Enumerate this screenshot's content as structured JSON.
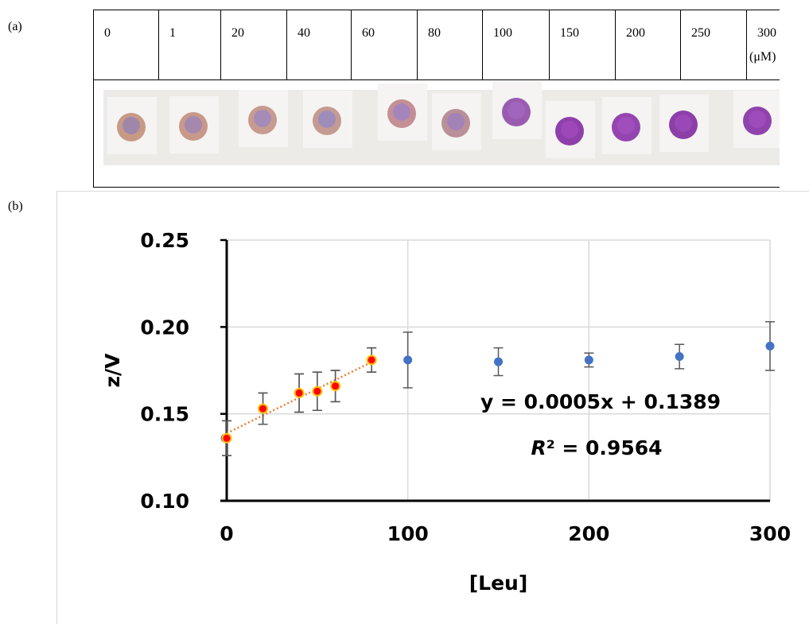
{
  "panel_a": {
    "label": "(a)",
    "concentrations": [
      "0",
      "1",
      "20",
      "40",
      "60",
      "80",
      "100",
      "150",
      "200",
      "250",
      "300"
    ],
    "unit": "(μM)"
  },
  "panel_b": {
    "label": "(b)"
  },
  "chart_data": {
    "type": "scatter",
    "x_label": "[Leu]",
    "y_label": "z/V",
    "x": [
      0,
      20,
      40,
      50,
      60,
      80,
      100,
      150,
      200,
      250,
      300
    ],
    "series": [
      {
        "color": "#4472c4",
        "values": [
          0.136,
          0.153,
          0.162,
          0.163,
          0.166,
          0.181,
          0.181,
          0.18,
          0.181,
          0.183,
          0.189
        ],
        "errors": [
          0.01,
          0.009,
          0.011,
          0.011,
          0.009,
          0.007,
          0.016,
          0.008,
          0.004,
          0.007,
          0.014
        ]
      },
      {
        "color": "#ff0000",
        "edge_color": "#ffc000",
        "trendline": true,
        "values": [
          0.136,
          0.153,
          0.162,
          0.163,
          0.166,
          0.181,
          null,
          null,
          null,
          null,
          null
        ],
        "errors": [
          0.01,
          0.009,
          0.011,
          0.011,
          0.009,
          0.007,
          null,
          null,
          null,
          null,
          null
        ]
      }
    ],
    "trendline_color": "#ed7d31",
    "annotations": {
      "equation": "y = 0.0005x + 0.1389",
      "r2_symbol": "R",
      "r2_text": "² = 0.9564"
    },
    "xlim": [
      0,
      300
    ],
    "xticks": [
      0,
      100,
      200,
      300
    ],
    "ylim": [
      0.1,
      0.25
    ],
    "yticks": [
      {
        "value": 0.1,
        "label": "0.10"
      },
      0.15,
      {
        "value": 0.2,
        "label": "0.20"
      },
      0.25
    ],
    "grid": true
  }
}
